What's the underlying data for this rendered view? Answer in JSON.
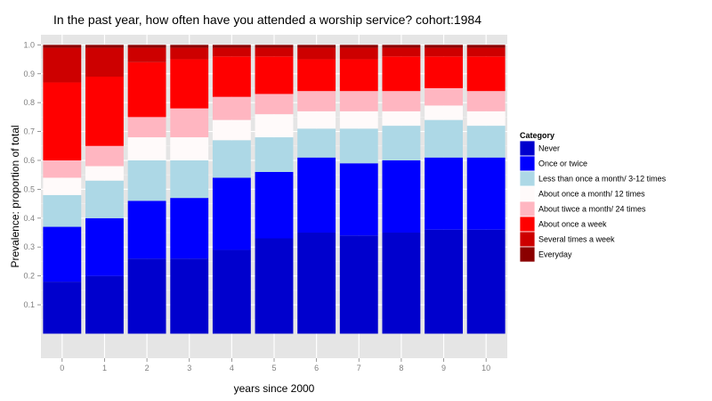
{
  "chart_data": {
    "type": "bar",
    "stacked": true,
    "title": "In the past year, how often have you attended a worship service?   cohort:1984",
    "xlabel": "years since 2000",
    "ylabel": "Prevalence: proportion of total",
    "ylim": [
      0,
      1
    ],
    "yticks": [
      "0.1",
      "0.2",
      "0.3",
      "0.4",
      "0.5",
      "0.6",
      "0.7",
      "0.8",
      "0.9",
      "1.0"
    ],
    "grid": true,
    "legend_position": "right",
    "legend_title": "Category",
    "categories": [
      "0",
      "1",
      "2",
      "3",
      "4",
      "5",
      "6",
      "7",
      "8",
      "9",
      "10"
    ],
    "series": [
      {
        "name": "Never",
        "color": "#0000CD",
        "values": [
          0.18,
          0.2,
          0.26,
          0.26,
          0.29,
          0.33,
          0.35,
          0.34,
          0.35,
          0.36,
          0.36
        ]
      },
      {
        "name": "Once or twice",
        "color": "#0000FF",
        "values": [
          0.19,
          0.2,
          0.2,
          0.21,
          0.25,
          0.23,
          0.26,
          0.25,
          0.25,
          0.25,
          0.25
        ]
      },
      {
        "name": "Less than once a month/ 3-12 times",
        "color": "#ADD8E6",
        "values": [
          0.11,
          0.13,
          0.14,
          0.13,
          0.13,
          0.12,
          0.1,
          0.12,
          0.12,
          0.13,
          0.11
        ]
      },
      {
        "name": "About once a month/ 12 times",
        "color": "#FFFAFA",
        "values": [
          0.06,
          0.05,
          0.08,
          0.08,
          0.07,
          0.08,
          0.06,
          0.06,
          0.05,
          0.05,
          0.05
        ]
      },
      {
        "name": "About tiwce a month/ 24 times",
        "color": "#FFB6C1",
        "values": [
          0.06,
          0.07,
          0.07,
          0.1,
          0.08,
          0.07,
          0.07,
          0.07,
          0.07,
          0.06,
          0.07
        ]
      },
      {
        "name": "About once a week",
        "color": "#FF0000",
        "values": [
          0.27,
          0.24,
          0.19,
          0.17,
          0.14,
          0.13,
          0.11,
          0.11,
          0.12,
          0.11,
          0.12
        ]
      },
      {
        "name": "Several times a week",
        "color": "#CD0000",
        "values": [
          0.12,
          0.1,
          0.05,
          0.04,
          0.03,
          0.03,
          0.04,
          0.04,
          0.03,
          0.03,
          0.03
        ]
      },
      {
        "name": "Everyday",
        "color": "#8B0000",
        "values": [
          0.01,
          0.01,
          0.01,
          0.01,
          0.01,
          0.01,
          0.01,
          0.01,
          0.01,
          0.01,
          0.01
        ]
      }
    ]
  }
}
